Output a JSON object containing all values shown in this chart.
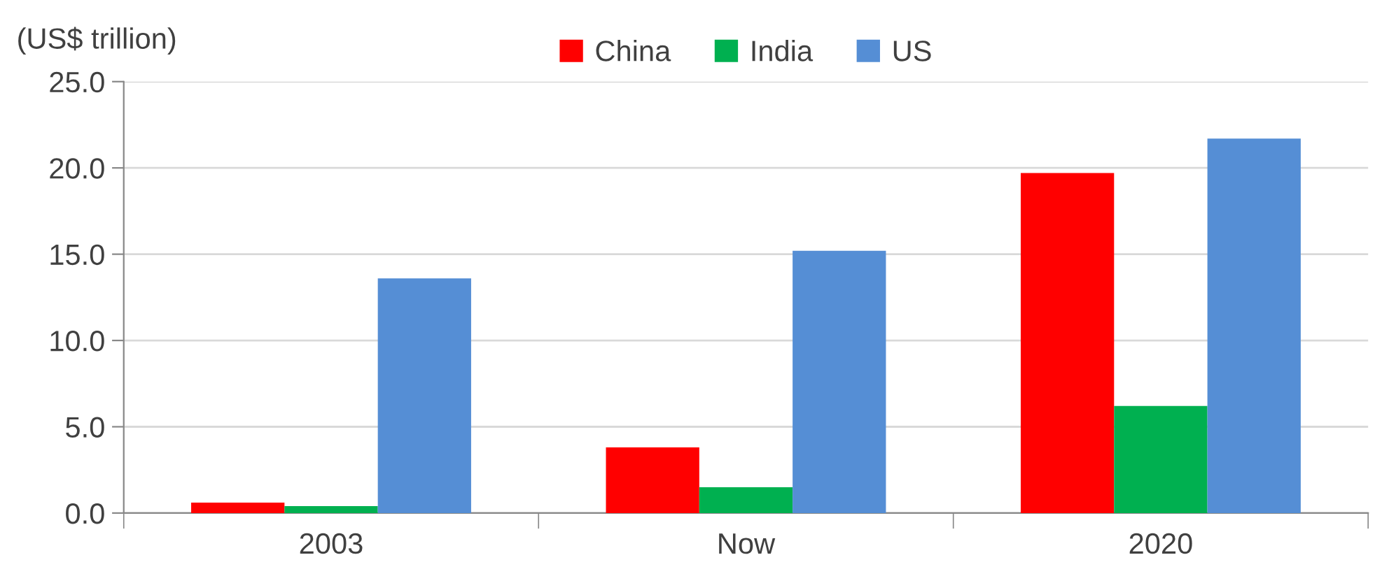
{
  "chart_data": {
    "type": "bar",
    "ylabel": "(US$ trillion)",
    "categories": [
      "2003",
      "Now",
      "2020"
    ],
    "series": [
      {
        "name": "China",
        "color": "#ff0000",
        "values": [
          0.6,
          3.8,
          19.7
        ]
      },
      {
        "name": "India",
        "color": "#00b050",
        "values": [
          0.4,
          1.5,
          6.2
        ]
      },
      {
        "name": "US",
        "color": "#558ed5",
        "values": [
          13.6,
          15.2,
          21.7
        ]
      }
    ],
    "ylim": [
      0,
      25
    ],
    "yticks": [
      {
        "value": 0,
        "label": "0.0"
      },
      {
        "value": 5,
        "label": "5.0"
      },
      {
        "value": 10,
        "label": "10.0"
      },
      {
        "value": 15,
        "label": "15.0"
      },
      {
        "value": 20,
        "label": "20.0"
      },
      {
        "value": 25,
        "label": "25.0"
      }
    ],
    "grid": "y",
    "legend": "top"
  }
}
